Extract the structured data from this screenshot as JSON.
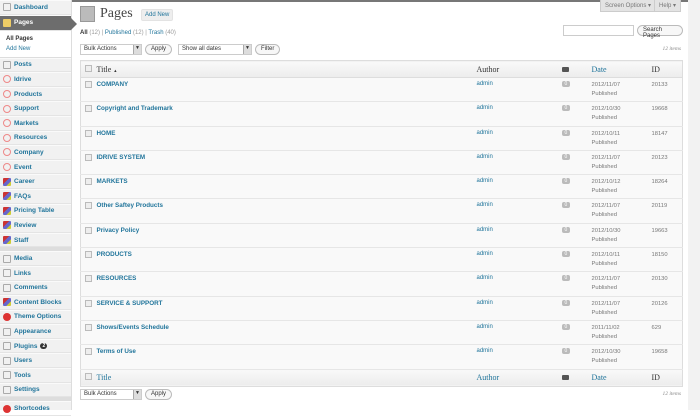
{
  "sidebar": {
    "dashboard": "Dashboard",
    "pages": "Pages",
    "sub": [
      "All Pages",
      "Add New"
    ],
    "items1": [
      {
        "label": "Posts",
        "icon": "pin-icon"
      },
      {
        "label": "Idrive",
        "icon": "lifebuoy-icon"
      },
      {
        "label": "Products",
        "icon": "lifebuoy-icon"
      },
      {
        "label": "Support",
        "icon": "lifebuoy-icon"
      },
      {
        "label": "Markets",
        "icon": "lifebuoy-icon"
      },
      {
        "label": "Resources",
        "icon": "lifebuoy-icon"
      },
      {
        "label": "Company",
        "icon": "lifebuoy-icon"
      },
      {
        "label": "Event",
        "icon": "lifebuoy-icon"
      },
      {
        "label": "Career",
        "icon": "blocks-icon"
      },
      {
        "label": "FAQs",
        "icon": "blocks-icon"
      },
      {
        "label": "Pricing Table",
        "icon": "blocks-icon"
      },
      {
        "label": "Review",
        "icon": "blocks-icon"
      },
      {
        "label": "Staff",
        "icon": "blocks-icon"
      }
    ],
    "items2": [
      {
        "label": "Media",
        "icon": "media-icon"
      },
      {
        "label": "Links",
        "icon": "link-icon"
      },
      {
        "label": "Comments",
        "icon": "comment-icon"
      },
      {
        "label": "Content Blocks",
        "icon": "blocks-icon"
      },
      {
        "label": "Theme Options",
        "icon": "theme-options-icon"
      },
      {
        "label": "Appearance",
        "icon": "appearance-icon"
      },
      {
        "label": "Plugins",
        "icon": "plugin-icon",
        "badge": "2"
      },
      {
        "label": "Users",
        "icon": "users-icon"
      },
      {
        "label": "Tools",
        "icon": "tools-icon"
      },
      {
        "label": "Settings",
        "icon": "settings-icon"
      }
    ],
    "shortcodes": "Shortcodes"
  },
  "top": {
    "screen_options": "Screen Options ▾",
    "help": "Help ▾"
  },
  "header": {
    "title": "Pages",
    "add_new": "Add New"
  },
  "filters": {
    "all": "All",
    "all_count": "(12)",
    "published": "Published",
    "published_count": "(12)",
    "trash": "Trash",
    "trash_count": "(40)"
  },
  "search": {
    "value": "",
    "button": "Search Pages"
  },
  "actions": {
    "bulk": "Bulk Actions",
    "apply": "Apply",
    "dates": "Show all dates",
    "filter": "Filter",
    "items": "12 items"
  },
  "columns": {
    "title": "Title",
    "title_sort": "▲",
    "author": "Author",
    "date": "Date",
    "id": "ID"
  },
  "rows": [
    {
      "title": "COMPANY",
      "author": "admin",
      "comments": "0",
      "date": "2012/11/07",
      "status": "Published",
      "id": "20133"
    },
    {
      "title": "Copyright and Trademark",
      "author": "admin",
      "comments": "0",
      "date": "2012/10/30",
      "status": "Published",
      "id": "19668"
    },
    {
      "title": "HOME",
      "author": "admin",
      "comments": "0",
      "date": "2012/10/11",
      "status": "Published",
      "id": "18147"
    },
    {
      "title": "IDRIVE SYSTEM",
      "author": "admin",
      "comments": "0",
      "date": "2012/11/07",
      "status": "Published",
      "id": "20123"
    },
    {
      "title": "MARKETS",
      "author": "admin",
      "comments": "0",
      "date": "2012/10/12",
      "status": "Published",
      "id": "18264"
    },
    {
      "title": "Other Saftey Products",
      "author": "admin",
      "comments": "0",
      "date": "2012/11/07",
      "status": "Published",
      "id": "20119"
    },
    {
      "title": "Privacy Policy",
      "author": "admin",
      "comments": "0",
      "date": "2012/10/30",
      "status": "Published",
      "id": "19663"
    },
    {
      "title": "PRODUCTS",
      "author": "admin",
      "comments": "0",
      "date": "2012/10/11",
      "status": "Published",
      "id": "18150"
    },
    {
      "title": "RESOURCES",
      "author": "admin",
      "comments": "0",
      "date": "2012/11/07",
      "status": "Published",
      "id": "20130"
    },
    {
      "title": "SERVICE & SUPPORT",
      "author": "admin",
      "comments": "0",
      "date": "2012/11/07",
      "status": "Published",
      "id": "20126"
    },
    {
      "title": "Shows/Events Schedule",
      "author": "admin",
      "comments": "0",
      "date": "2011/11/02",
      "status": "Published",
      "id": "629"
    },
    {
      "title": "Terms of Use",
      "author": "admin",
      "comments": "0",
      "date": "2012/10/30",
      "status": "Published",
      "id": "19658"
    }
  ]
}
